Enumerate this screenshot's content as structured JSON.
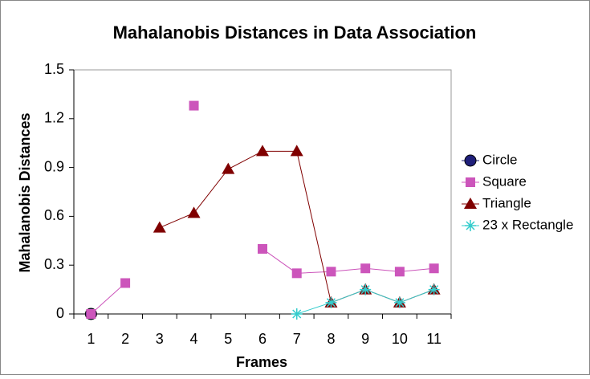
{
  "chart_data": {
    "type": "line",
    "title": "Mahalanobis Distances in Data Association",
    "x_label": "Frames",
    "y_label": "Mahalanobis Distances",
    "categories": [
      "1",
      "2",
      "3",
      "4",
      "5",
      "6",
      "7",
      "8",
      "9",
      "10",
      "11"
    ],
    "series": [
      {
        "name": "Circle",
        "color": "#1f1f7a",
        "marker": "circle",
        "values": [
          0,
          null,
          null,
          null,
          null,
          null,
          null,
          null,
          null,
          null,
          null
        ]
      },
      {
        "name": "Square",
        "color": "#cc55bb",
        "marker": "square",
        "values": [
          0,
          0.19,
          null,
          1.28,
          null,
          0.4,
          0.25,
          0.26,
          0.28,
          0.26,
          0.28
        ]
      },
      {
        "name": "Triangle",
        "color": "#800000",
        "marker": "triangle",
        "values": [
          null,
          null,
          0.53,
          0.62,
          0.89,
          1.0,
          1.0,
          0.07,
          0.15,
          0.07,
          0.15
        ]
      },
      {
        "name": "23 x Rectangle",
        "color": "#33cccc",
        "marker": "asterisk",
        "values": [
          null,
          null,
          null,
          null,
          null,
          null,
          0,
          0.07,
          0.15,
          0.07,
          0.15
        ]
      }
    ],
    "ylim": [
      0,
      1.5
    ],
    "yticks": [
      0,
      0.3,
      0.6,
      0.9,
      1.2,
      1.5
    ],
    "grid": false,
    "legend": "right"
  }
}
